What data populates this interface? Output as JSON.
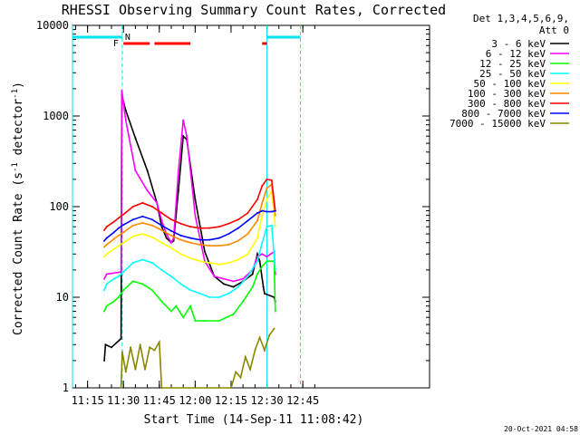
{
  "chart_data": {
    "type": "line",
    "title": "RHESSI Observing Summary Count Rates, Corrected",
    "xlabel": "Start Time (14-Sep-11 11:08:42)",
    "ylabel": "Corrected Count Rate (s",
    "ylabel_sup": "-1",
    "ylabel_mid": " detector",
    "ylabel_tail": ")",
    "yscale": "log",
    "ylim": [
      1,
      10000
    ],
    "xlim_min": [
      8.7,
      158
    ],
    "x_ticks": [
      {
        "value": 15,
        "label": "11:15"
      },
      {
        "value": 30,
        "label": "11:30"
      },
      {
        "value": 45,
        "label": "11:45"
      },
      {
        "value": 60,
        "label": "12:00"
      },
      {
        "value": 75,
        "label": "12:15"
      },
      {
        "value": 90,
        "label": "12:30"
      },
      {
        "value": 105,
        "label": "12:45"
      }
    ],
    "y_ticks": [
      {
        "value": 1,
        "label": "1"
      },
      {
        "value": 10,
        "label": "10"
      },
      {
        "value": 100,
        "label": "100"
      },
      {
        "value": 1000,
        "label": "1000"
      },
      {
        "value": 10000,
        "label": "10000"
      }
    ],
    "legend_header": [
      "Det 1,3,4,5,6,9,",
      "Att 0"
    ],
    "series": [
      {
        "name": "3 - 6 keV",
        "color": "#000000",
        "x": [
          22,
          22.5,
          25,
          29,
          29.3,
          31,
          35,
          40,
          44,
          46,
          48,
          50,
          51,
          53,
          55,
          56.5,
          60,
          64,
          68,
          72,
          76,
          80,
          84,
          86,
          87,
          88.5,
          89,
          93,
          93.5
        ],
        "y": [
          2,
          3,
          2.8,
          3.5,
          1700,
          1150,
          570,
          250,
          110,
          60,
          45,
          40,
          42,
          150,
          600,
          550,
          120,
          32,
          17,
          14,
          13,
          15,
          18,
          30,
          25,
          13,
          11,
          10,
          9
        ]
      },
      {
        "name": "6 - 12 keV",
        "color": "#ff00ff",
        "x": [
          22,
          23,
          29,
          29.3,
          31,
          35,
          40,
          44,
          46,
          48,
          50,
          51,
          53,
          55,
          56.5,
          60,
          64,
          68,
          72,
          76,
          80,
          84,
          86,
          88,
          90,
          93,
          93.5
        ],
        "y": [
          16,
          18,
          19,
          1900,
          900,
          250,
          150,
          110,
          70,
          50,
          40,
          45,
          250,
          900,
          600,
          80,
          25,
          17,
          16,
          15,
          16,
          20,
          28,
          30,
          28,
          32,
          18
        ]
      },
      {
        "name": "12 - 25 keV",
        "color": "#00ff00",
        "x": [
          22,
          23,
          26,
          28,
          30,
          34,
          38,
          42,
          46,
          50,
          52,
          55,
          58,
          60,
          64,
          70,
          76,
          80,
          84,
          86,
          88,
          90,
          93,
          93.5
        ],
        "y": [
          7,
          8,
          9,
          10,
          12,
          15,
          14,
          12,
          9,
          7,
          8,
          6,
          8,
          5.5,
          5.5,
          5.5,
          6.5,
          9,
          13,
          18,
          22,
          25,
          25,
          7
        ]
      },
      {
        "name": "25 - 50 keV",
        "color": "#00ffff",
        "x": [
          22,
          23,
          26,
          28,
          30,
          34,
          38,
          42,
          46,
          50,
          54,
          58,
          62,
          66,
          70,
          74,
          78,
          82,
          86,
          88,
          90,
          92,
          93.5
        ],
        "y": [
          12,
          14,
          16,
          17,
          19,
          24,
          26,
          24,
          20,
          17,
          14,
          12,
          11,
          10,
          10,
          11,
          13,
          17,
          25,
          40,
          60,
          62,
          20
        ]
      },
      {
        "name": "50 - 100 keV",
        "color": "#ffff00",
        "x": [
          22,
          23,
          26,
          28,
          30,
          34,
          38,
          42,
          46,
          50,
          54,
          58,
          62,
          66,
          70,
          74,
          78,
          82,
          86,
          88,
          90,
          92,
          93.5
        ],
        "y": [
          28,
          30,
          34,
          37,
          40,
          47,
          50,
          46,
          40,
          35,
          30,
          27,
          25,
          24,
          23,
          24,
          26,
          30,
          45,
          80,
          120,
          150,
          60
        ]
      },
      {
        "name": "100 - 300 keV",
        "color": "#ff8800",
        "x": [
          22,
          23,
          26,
          28,
          30,
          34,
          38,
          42,
          46,
          50,
          54,
          58,
          62,
          66,
          70,
          74,
          78,
          82,
          86,
          88,
          90,
          92,
          93.5
        ],
        "y": [
          36,
          38,
          44,
          48,
          52,
          62,
          66,
          62,
          55,
          48,
          43,
          40,
          38,
          37,
          37,
          38,
          42,
          50,
          70,
          110,
          160,
          175,
          80
        ]
      },
      {
        "name": "300 - 800 keV",
        "color": "#ff0000",
        "x": [
          22,
          23,
          26,
          28,
          30,
          34,
          38,
          42,
          46,
          50,
          54,
          58,
          62,
          66,
          70,
          74,
          78,
          82,
          86,
          88,
          90,
          92,
          93.5
        ],
        "y": [
          55,
          60,
          68,
          75,
          82,
          100,
          110,
          100,
          85,
          72,
          65,
          60,
          58,
          58,
          60,
          65,
          72,
          85,
          120,
          170,
          200,
          195,
          90
        ]
      },
      {
        "name": "800 - 7000 keV",
        "color": "#0000ff",
        "x": [
          22,
          23,
          26,
          28,
          30,
          34,
          38,
          42,
          46,
          50,
          54,
          58,
          62,
          66,
          70,
          74,
          78,
          82,
          86,
          88,
          90,
          92,
          93.5
        ],
        "y": [
          42,
          45,
          52,
          58,
          63,
          72,
          78,
          72,
          62,
          54,
          48,
          45,
          43,
          43,
          45,
          50,
          58,
          70,
          85,
          90,
          88,
          88,
          90
        ]
      },
      {
        "name": "7000 - 15000 keV",
        "color": "#888800",
        "x": [
          29,
          29.5,
          31,
          33,
          35,
          37,
          39,
          41,
          43,
          45,
          46,
          75,
          77,
          79,
          81,
          83,
          85,
          87,
          89,
          91,
          93
        ],
        "y": [
          1,
          2.5,
          1.5,
          2.8,
          1.6,
          3,
          1.6,
          2.8,
          2.6,
          3.2,
          1,
          1,
          1.5,
          1.3,
          2.2,
          1.6,
          2.6,
          3.6,
          2.6,
          3.8,
          4.5
        ]
      }
    ],
    "flags": {
      "attenuator_bar": {
        "label": "N",
        "color": "#00e5ee",
        "spans": [
          [
            8.7,
            29.5
          ],
          [
            90,
            104
          ]
        ]
      },
      "flare_bar": {
        "label": "F",
        "color": "#ff0000",
        "spans": [
          [
            30,
            41
          ],
          [
            43,
            58
          ],
          [
            88,
            90
          ]
        ]
      },
      "vertical_markers": [
        8.7,
        29.5,
        90,
        104
      ]
    },
    "footer_date": "20-Oct-2021 04:58"
  }
}
